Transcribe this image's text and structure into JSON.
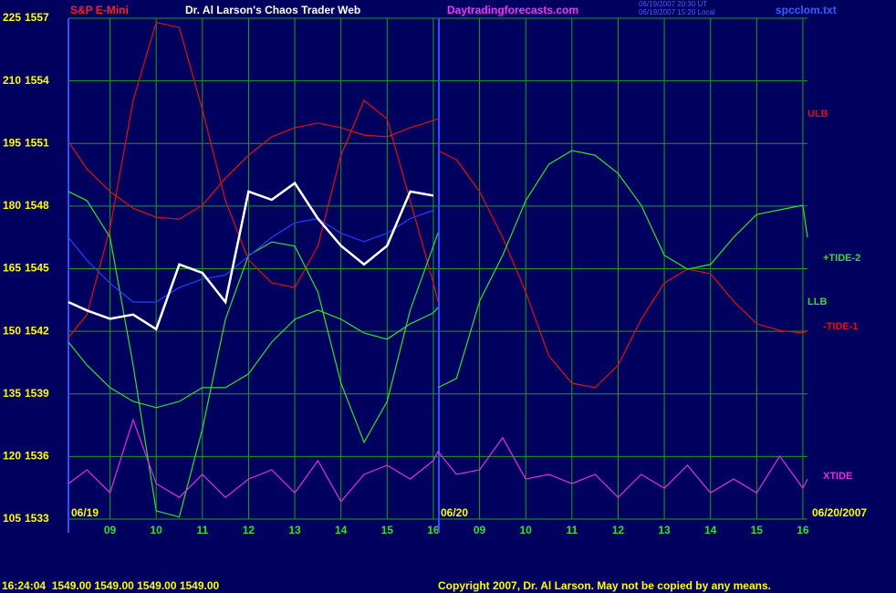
{
  "chart_data": {
    "type": "line",
    "title": "Dr. Al Larson's Chaos Trader Web",
    "subtitle": "S&P E-Mini",
    "site": "Daytradingforecasts.com",
    "timestamps": [
      "06/19/2007 20:30 UT",
      "06/19/2007 15:20 Local"
    ],
    "file": "spcclom.txt",
    "dates": [
      "06/19",
      "06/20",
      "06/20/2007"
    ],
    "status": "16:24:04  1549.00 1549.00 1549.00 1549.00",
    "copyright": "Copyright 2007, Dr. Al Larson. May not be copied by any means.",
    "annotations": [
      {
        "text": "ULB",
        "color": "#e01010"
      },
      {
        "text": "+TIDE-2",
        "color": "#30e030"
      },
      {
        "text": "LLB",
        "color": "#30e030"
      },
      {
        "text": "-TIDE-1",
        "color": "#e01010"
      },
      {
        "text": "XTIDE",
        "color": "#e030e0"
      }
    ],
    "x": [
      -0.9,
      -0.5,
      0,
      0.5,
      1,
      1.5,
      2,
      2.5,
      3,
      3.5,
      4,
      4.5,
      5,
      5.5,
      6,
      6.5,
      7,
      7.1,
      7.5,
      8,
      8.5,
      9,
      9.5,
      10,
      10.5,
      11,
      11.5,
      12,
      12.5,
      13,
      13.5,
      14,
      14.5,
      15,
      15.1
    ],
    "xlim": [
      -0.9,
      15.1
    ],
    "xticks": [
      {
        "value": 0,
        "label": "09"
      },
      {
        "value": 1,
        "label": "10"
      },
      {
        "value": 2,
        "label": "11"
      },
      {
        "value": 3,
        "label": "12"
      },
      {
        "value": 4,
        "label": "13"
      },
      {
        "value": 5,
        "label": "14"
      },
      {
        "value": 6,
        "label": "15"
      },
      {
        "value": 7,
        "label": "16"
      },
      {
        "value": 8,
        "label": "09"
      },
      {
        "value": 9,
        "label": "10"
      },
      {
        "value": 10,
        "label": "11"
      },
      {
        "value": 11,
        "label": "12"
      },
      {
        "value": 12,
        "label": "13"
      },
      {
        "value": 13,
        "label": "14"
      },
      {
        "value": 14,
        "label": "15"
      },
      {
        "value": 15,
        "label": "16"
      }
    ],
    "ylim": [
      105,
      225
    ],
    "yticks": [
      225,
      210,
      195,
      180,
      165,
      150,
      135,
      120,
      105
    ],
    "y2lim": [
      1533,
      1557
    ],
    "y2ticks": [
      1557,
      1554,
      1551,
      1548,
      1545,
      1542,
      1539,
      1536,
      1533
    ],
    "grid": true,
    "series": [
      {
        "color": "#e01010",
        "values": [
          148.5,
          154.0,
          174.7,
          205.3,
          224,
          222.8,
          203.1,
          181.3,
          167.1,
          161.6,
          160.5,
          170.4,
          192.2,
          205.3,
          200.9,
          181.3,
          161.6,
          157.2,
          null,
          null,
          null,
          null,
          null,
          null,
          null,
          null,
          null,
          null,
          null,
          null,
          null,
          null,
          null,
          null,
          null
        ]
      },
      {
        "color": "#e01010",
        "values": [
          195.5,
          188.9,
          183.5,
          179.5,
          177.3,
          176.9,
          180.2,
          186.7,
          192.2,
          196.6,
          198.8,
          199.9,
          198.8,
          197.0,
          196.6,
          198.8,
          200.5,
          200.9,
          null,
          null,
          null,
          null,
          null,
          null,
          null,
          null,
          null,
          null,
          null,
          null,
          null,
          null,
          null,
          null,
          null
        ]
      },
      {
        "color": "#30e030",
        "values": [
          183.5,
          181.3,
          172.5,
          141.9,
          107.0,
          105.5,
          126.6,
          152.9,
          168.2,
          171.4,
          170.4,
          159.4,
          137.6,
          123.4,
          133.2,
          155.1,
          170.4,
          173.6,
          null,
          null,
          null,
          null,
          null,
          null,
          null,
          null,
          null,
          null,
          null,
          null,
          null,
          null,
          null,
          null,
          null
        ]
      },
      {
        "color": "#30e030",
        "values": [
          147.4,
          141.9,
          136.5,
          133.2,
          131.7,
          133.2,
          136.5,
          136.5,
          139.8,
          147.4,
          152.9,
          155.1,
          152.9,
          149.6,
          148.1,
          151.8,
          154.4,
          155.7,
          null,
          null,
          null,
          null,
          null,
          null,
          null,
          null,
          null,
          null,
          null,
          null,
          null,
          null,
          null,
          null,
          null
        ]
      },
      {
        "color": "#2040ff",
        "axis": "y2",
        "values": [
          1546.5,
          1545.4,
          1544.3,
          1543.4,
          1543.4,
          1544.1,
          1544.5,
          1544.7,
          1545.6,
          1546.5,
          1547.2,
          1547.4,
          1546.7,
          1546.3,
          1546.7,
          1547.4,
          1547.8,
          null,
          null,
          null,
          null,
          null,
          null,
          null,
          null,
          null,
          null,
          null,
          null,
          null,
          null,
          null,
          null,
          null,
          null
        ]
      },
      {
        "color": "#ffffff",
        "axis": "y2",
        "values": [
          1543.4,
          1543.0,
          1542.6,
          1542.8,
          1542.1,
          1545.2,
          1544.8,
          1543.4,
          1548.7,
          1548.3,
          1549.1,
          1547.4,
          1546.1,
          1545.2,
          1546.1,
          1548.7,
          1548.5,
          null,
          null,
          null,
          null,
          null,
          null,
          null,
          null,
          null,
          null,
          null,
          null,
          null,
          null,
          null,
          null,
          null,
          null
        ]
      },
      {
        "color": "#e01010",
        "values": [
          null,
          null,
          null,
          null,
          null,
          null,
          null,
          null,
          null,
          null,
          null,
          null,
          null,
          null,
          null,
          null,
          null,
          193.3,
          191.1,
          183.5,
          172.5,
          159.4,
          144.1,
          137.6,
          136.5,
          141.9,
          152.9,
          161.6,
          164.9,
          163.8,
          157.2,
          151.8,
          150.2,
          149.6,
          150.2
        ]
      },
      {
        "color": "#30e030",
        "values": [
          null,
          null,
          null,
          null,
          null,
          null,
          null,
          null,
          null,
          null,
          null,
          null,
          null,
          null,
          null,
          null,
          null,
          136.5,
          138.7,
          157.2,
          168.2,
          181.3,
          190.0,
          193.3,
          192.2,
          187.8,
          180.2,
          168.2,
          164.9,
          166.0,
          172.5,
          178.0,
          179.1,
          180.2,
          172.5
        ]
      },
      {
        "color": "#e030e0",
        "values": [
          113.5,
          116.8,
          111.3,
          128.8,
          113.5,
          110.2,
          115.7,
          110.2,
          114.6,
          116.8,
          111.3,
          119.0,
          109.2,
          115.7,
          117.9,
          114.6,
          119.0,
          121.2,
          115.7,
          116.8,
          124.5,
          114.6,
          115.7,
          113.5,
          115.7,
          110.2,
          115.7,
          112.4,
          117.9,
          111.3,
          114.6,
          111.3,
          120.1,
          112.4,
          114.6
        ]
      }
    ]
  }
}
